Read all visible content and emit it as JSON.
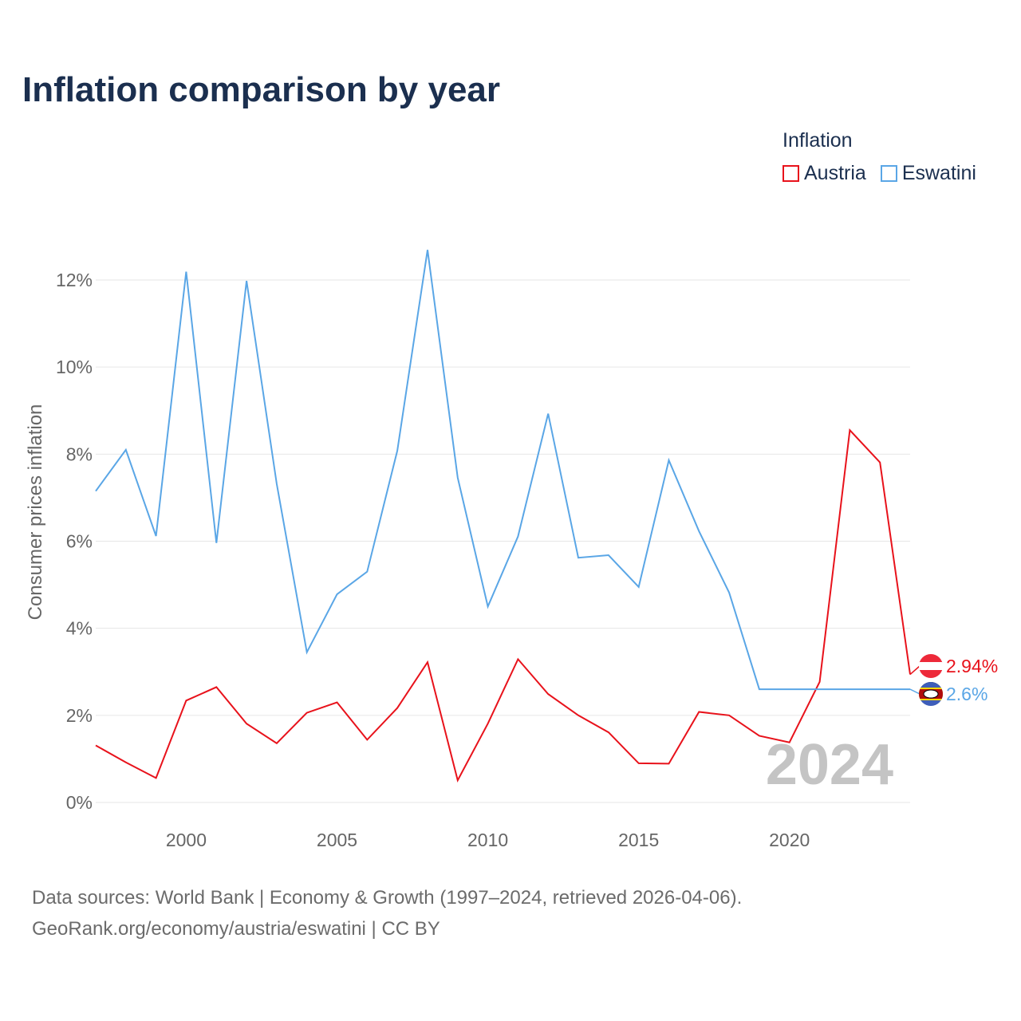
{
  "header": {
    "title": "Inflation comparison by year"
  },
  "legend": {
    "title": "Inflation",
    "items": [
      {
        "label": "Austria",
        "color": "#e8121b"
      },
      {
        "label": "Eswatini",
        "color": "#5aa6e6"
      }
    ]
  },
  "footer": {
    "line1": "Data sources: World Bank | Economy & Growth (1997–2024, retrieved 2026-04-06).",
    "line2": "GeoRank.org/economy/austria/eswatini | CC BY"
  },
  "chart_data": {
    "type": "line",
    "title": "Inflation comparison by year",
    "xlabel": "",
    "ylabel": "Consumer prices inflation",
    "xlim": [
      1997,
      2024
    ],
    "ylim": [
      0,
      13
    ],
    "yticks": [
      0,
      2,
      4,
      6,
      8,
      10,
      12
    ],
    "ytick_labels": [
      "0%",
      "2%",
      "4%",
      "6%",
      "8%",
      "10%",
      "12%"
    ],
    "xticks": [
      2000,
      2005,
      2010,
      2015,
      2020
    ],
    "xtick_labels": [
      "2000",
      "2005",
      "2010",
      "2015",
      "2020"
    ],
    "year_watermark": "2024",
    "grid": true,
    "legend_position": "top-right",
    "series": [
      {
        "name": "Austria",
        "color": "#e8121b",
        "end_label": "2.94%",
        "points": [
          [
            1997,
            1.31
          ],
          [
            1998,
            0.92
          ],
          [
            1999,
            0.56
          ],
          [
            2000,
            2.34
          ],
          [
            2001,
            2.65
          ],
          [
            2002,
            1.81
          ],
          [
            2003,
            1.36
          ],
          [
            2004,
            2.06
          ],
          [
            2005,
            2.3
          ],
          [
            2006,
            1.44
          ],
          [
            2007,
            2.17
          ],
          [
            2008,
            3.22
          ],
          [
            2009,
            0.51
          ],
          [
            2010,
            1.81
          ],
          [
            2011,
            3.29
          ],
          [
            2012,
            2.49
          ],
          [
            2013,
            2.0
          ],
          [
            2014,
            1.61
          ],
          [
            2015,
            0.9
          ],
          [
            2016,
            0.89
          ],
          [
            2017,
            2.08
          ],
          [
            2018,
            2.0
          ],
          [
            2019,
            1.53
          ],
          [
            2020,
            1.38
          ],
          [
            2021,
            2.77
          ],
          [
            2022,
            8.55
          ],
          [
            2023,
            7.81
          ],
          [
            2024,
            2.94
          ]
        ]
      },
      {
        "name": "Eswatini",
        "color": "#5aa6e6",
        "end_label": "2.6%",
        "points": [
          [
            1997,
            7.15
          ],
          [
            1998,
            8.1
          ],
          [
            1999,
            6.12
          ],
          [
            2000,
            12.19
          ],
          [
            2001,
            5.96
          ],
          [
            2002,
            11.98
          ],
          [
            2003,
            7.32
          ],
          [
            2004,
            3.45
          ],
          [
            2005,
            4.78
          ],
          [
            2006,
            5.3
          ],
          [
            2007,
            8.08
          ],
          [
            2008,
            12.69
          ],
          [
            2009,
            7.46
          ],
          [
            2010,
            4.5
          ],
          [
            2011,
            6.11
          ],
          [
            2012,
            8.93
          ],
          [
            2013,
            5.62
          ],
          [
            2014,
            5.68
          ],
          [
            2015,
            4.95
          ],
          [
            2016,
            7.86
          ],
          [
            2017,
            6.23
          ],
          [
            2018,
            4.82
          ],
          [
            2019,
            2.6
          ],
          [
            2024,
            2.6
          ]
        ],
        "flat_from": 2019
      }
    ]
  }
}
